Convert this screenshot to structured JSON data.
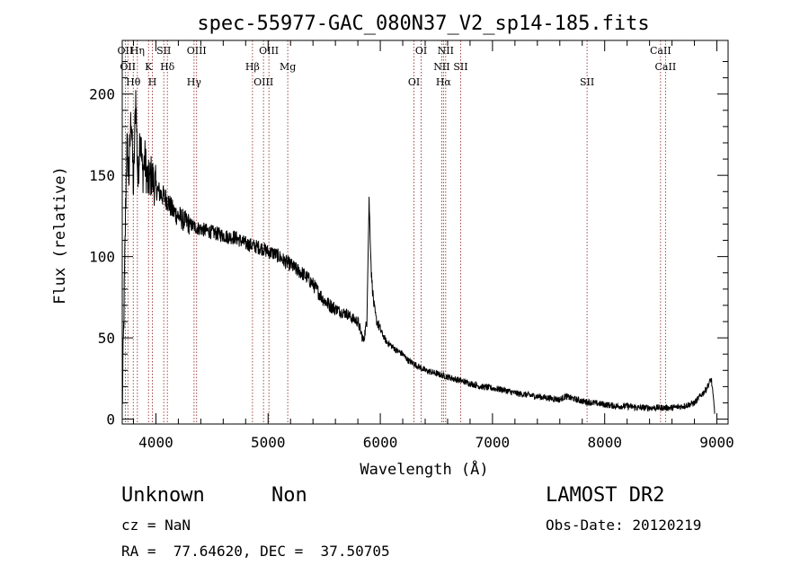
{
  "chart_data": {
    "type": "line",
    "title": "spec-55977-GAC_080N37_V2_sp14-185.fits",
    "xlabel": "Wavelength (Å)",
    "ylabel": "Flux (relative)",
    "xlim": [
      3700,
      9100
    ],
    "ylim": [
      -3,
      233
    ],
    "x_ticks": [
      4000,
      5000,
      6000,
      7000,
      8000,
      9000
    ],
    "y_ticks": [
      0,
      50,
      100,
      150,
      200
    ],
    "grid": false,
    "series": [
      {
        "x": [
          3700,
          3720,
          3740,
          3760,
          3780,
          3800,
          3820,
          3840,
          3860,
          3880,
          3900,
          3930,
          3960,
          4000,
          4050,
          4100,
          4150,
          4200,
          4250,
          4300,
          4350,
          4400,
          4450,
          4500,
          4550,
          4600,
          4650,
          4700,
          4750,
          4800,
          4850,
          4900,
          4950,
          5000,
          5050,
          5100,
          5150,
          5200,
          5250,
          5300,
          5350,
          5400,
          5450,
          5500,
          5550,
          5600,
          5650,
          5700,
          5750,
          5800,
          5850,
          5880,
          5900,
          5920,
          5940,
          5960,
          6000,
          6050,
          6100,
          6150,
          6200,
          6250,
          6300,
          6350,
          6400,
          6450,
          6500,
          6550,
          6600,
          6650,
          6700,
          6750,
          6800,
          6900,
          7000,
          7100,
          7200,
          7300,
          7400,
          7500,
          7600,
          7650,
          7700,
          7800,
          7900,
          8000,
          8100,
          8200,
          8300,
          8400,
          8500,
          8600,
          8700,
          8800,
          8850,
          8900,
          8930,
          8950,
          8980
        ],
        "y": [
          5,
          85,
          170,
          150,
          190,
          140,
          200,
          145,
          180,
          150,
          160,
          145,
          150,
          142,
          138,
          135,
          128,
          125,
          122,
          120,
          118,
          117,
          116,
          115,
          114,
          113,
          112,
          112,
          110,
          108,
          107,
          106,
          105,
          103,
          102,
          100,
          97,
          95,
          92,
          90,
          87,
          83,
          78,
          73,
          70,
          68,
          66,
          65,
          62,
          60,
          48,
          60,
          135,
          90,
          72,
          62,
          55,
          48,
          45,
          42,
          40,
          36,
          34,
          32,
          30,
          29,
          28,
          27,
          26,
          25,
          24,
          23,
          22,
          20,
          19,
          18,
          16,
          15,
          14,
          13,
          12,
          14,
          13,
          11,
          10,
          9,
          8,
          8,
          7,
          7,
          7,
          7,
          8,
          10,
          14,
          18,
          22,
          25,
          5
        ]
      }
    ],
    "lines": [
      {
        "x": 3727,
        "label": "OII"
      },
      {
        "x": 3750,
        "label": "OII"
      },
      {
        "x": 3798,
        "label": "Hθ"
      },
      {
        "x": 3835,
        "label": "Hη"
      },
      {
        "x": 3934,
        "label": "K"
      },
      {
        "x": 3969,
        "label": "H"
      },
      {
        "x": 4070,
        "label": "SII"
      },
      {
        "x": 4102,
        "label": "Hδ"
      },
      {
        "x": 4340,
        "label": "Hγ"
      },
      {
        "x": 4363,
        "label": "OIII"
      },
      {
        "x": 4861,
        "label": "Hβ"
      },
      {
        "x": 4959,
        "label": "OIII"
      },
      {
        "x": 5007,
        "label": "OIII"
      },
      {
        "x": 5175,
        "label": "Mg"
      },
      {
        "x": 6300,
        "label": "OI"
      },
      {
        "x": 6364,
        "label": "OI"
      },
      {
        "x": 6548,
        "label": "NII"
      },
      {
        "x": 6563,
        "label": "Hα"
      },
      {
        "x": 6583,
        "label": "NII"
      },
      {
        "x": 6716,
        "label": "SII"
      },
      {
        "x": 7843,
        "label": "SII"
      },
      {
        "x": 8498,
        "label": "CaII"
      },
      {
        "x": 8542,
        "label": "CaII"
      }
    ]
  },
  "footer": {
    "object_class": "Unknown",
    "subclass": "Non",
    "survey": "LAMOST DR2",
    "cz": "cz = NaN",
    "obs_date": "Obs-Date: 20120219",
    "coords": "RA =  77.64620, DEC =  37.50705"
  },
  "colors": {
    "spectrum": "#000000",
    "line_markers": "#8b1a1a"
  }
}
